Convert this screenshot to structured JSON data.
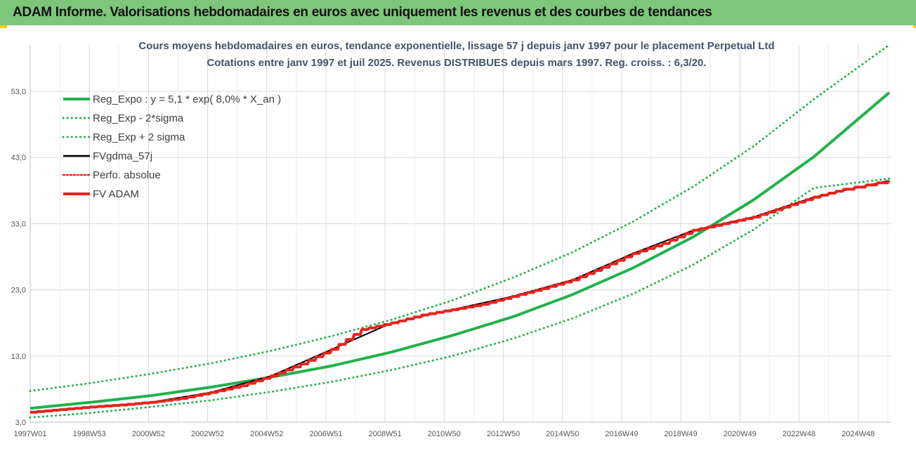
{
  "header": {
    "title": "ADAM Informe. Valorisations hebdomadaires en euros avec uniquement les revenus et des courbes de tendances"
  },
  "chart_data": {
    "type": "line",
    "title": "Cours moyens hebdomadaires en euros, tendance exponentielle, lissage 57 j depuis janv 1997 pour le placement Perpetual Ltd",
    "subtitle": "Cotations entre janv 1997 et juil 2025. Revenus DISTRIBUES depuis mars 1997. Reg. croiss. : 6,3/20.",
    "xlabel": "",
    "ylabel": "",
    "x_ticks": [
      "1997W01",
      "1998W53",
      "2000W52",
      "2002W52",
      "2004W52",
      "2006W51",
      "2008W51",
      "2010W50",
      "2012W50",
      "2014W50",
      "2016W49",
      "2018W49",
      "2020W49",
      "2022W48",
      "2024W48"
    ],
    "y_ticks": [
      "3,0",
      "13,0",
      "23,0",
      "33,0",
      "43,0",
      "53,0"
    ],
    "ylim": [
      3,
      60
    ],
    "xlim_years": [
      1997.0,
      2025.55
    ],
    "grid": true,
    "legend_position": "top-left",
    "series": [
      {
        "name": "Reg_Expo : y = 5,1 * exp( 8,0% *  X_an )",
        "color": "#22b14c",
        "style": "solid",
        "width": 4,
        "x": [
          1997.0,
          1999.0,
          2001.0,
          2003.0,
          2005.0,
          2007.0,
          2009.0,
          2011.0,
          2013.0,
          2015.0,
          2017.0,
          2019.0,
          2021.0,
          2023.0,
          2025.5
        ],
        "values": [
          5.1,
          6.0,
          7.0,
          8.3,
          9.8,
          11.5,
          13.6,
          16.1,
          18.9,
          22.3,
          26.3,
          31.0,
          36.6,
          43.1,
          52.8
        ]
      },
      {
        "name": "Reg_Exp - 2*sigma",
        "color": "#22b14c",
        "style": "dotted",
        "width": 3,
        "x": [
          1997.0,
          1999.0,
          2001.0,
          2003.0,
          2005.0,
          2007.0,
          2009.0,
          2011.0,
          2013.0,
          2015.0,
          2017.0,
          2019.0,
          2021.0,
          2023.0,
          2025.5
        ],
        "values": [
          7.7,
          8.9,
          10.3,
          11.9,
          13.8,
          16.0,
          18.5,
          21.4,
          24.8,
          28.7,
          33.3,
          38.6,
          44.7,
          51.8,
          62.5
        ]
      },
      {
        "name": "Reg_Exp + 2 sigma",
        "color": "#22b14c",
        "style": "dotted",
        "width": 3,
        "x": [
          1997.0,
          1999.0,
          2001.0,
          2003.0,
          2005.0,
          2007.0,
          2009.0,
          2011.0,
          2013.0,
          2015.0,
          2017.0,
          2019.0,
          2021.0,
          2023.0,
          2025.5
        ],
        "values": [
          3.7,
          4.4,
          5.3,
          6.3,
          7.6,
          9.1,
          10.9,
          13.0,
          15.6,
          18.7,
          22.4,
          26.8,
          32.1,
          38.4,
          39.8
        ]
      },
      {
        "name": "FVgdma_57j",
        "color": "#000000",
        "style": "solid",
        "width": 2,
        "x": [
          1997.0,
          1999.0,
          2001.0,
          2003.0,
          2005.0,
          2007.0,
          2009.0,
          2011.0,
          2013.0,
          2015.0,
          2017.0,
          2019.0,
          2021.0,
          2023.0,
          2025.5
        ],
        "values": [
          4.5,
          5.3,
          6.0,
          7.5,
          10.0,
          14.0,
          18.0,
          20.0,
          22.0,
          24.5,
          28.5,
          32.0,
          34.0,
          37.0,
          39.5
        ]
      },
      {
        "name": "Perfo. absolue",
        "color": "#e8231e",
        "style": "dotted",
        "width": 2,
        "x": [
          1997.0,
          1999.0,
          2001.0,
          2003.0,
          2005.0,
          2007.0,
          2009.0,
          2011.0,
          2013.0,
          2015.0,
          2017.0,
          2019.0,
          2021.0,
          2023.0,
          2025.5
        ],
        "values": [
          4.5,
          5.3,
          6.0,
          7.5,
          10.0,
          14.0,
          18.0,
          20.0,
          22.0,
          24.5,
          28.5,
          32.0,
          34.0,
          37.0,
          39.5
        ]
      },
      {
        "name": "FV ADAM",
        "color": "#e8231e",
        "style": "solid",
        "width": 4,
        "x": [
          1997.0,
          1998.0,
          1999.0,
          2000.0,
          2001.0,
          2002.0,
          2003.0,
          2004.0,
          2005.0,
          2006.0,
          2007.0,
          2008.0,
          2009.0,
          2010.0,
          2011.0,
          2012.0,
          2013.0,
          2014.0,
          2015.0,
          2016.0,
          2017.0,
          2018.0,
          2019.0,
          2020.0,
          2021.0,
          2022.0,
          2023.0,
          2024.0,
          2025.5
        ],
        "values": [
          4.5,
          4.9,
          5.3,
          5.6,
          6.0,
          6.6,
          7.5,
          8.5,
          10.0,
          11.8,
          14.0,
          17.0,
          18.0,
          19.2,
          20.0,
          20.8,
          22.0,
          23.2,
          24.5,
          26.4,
          28.5,
          30.0,
          32.0,
          33.0,
          34.0,
          35.5,
          37.0,
          38.2,
          39.5
        ]
      }
    ]
  }
}
